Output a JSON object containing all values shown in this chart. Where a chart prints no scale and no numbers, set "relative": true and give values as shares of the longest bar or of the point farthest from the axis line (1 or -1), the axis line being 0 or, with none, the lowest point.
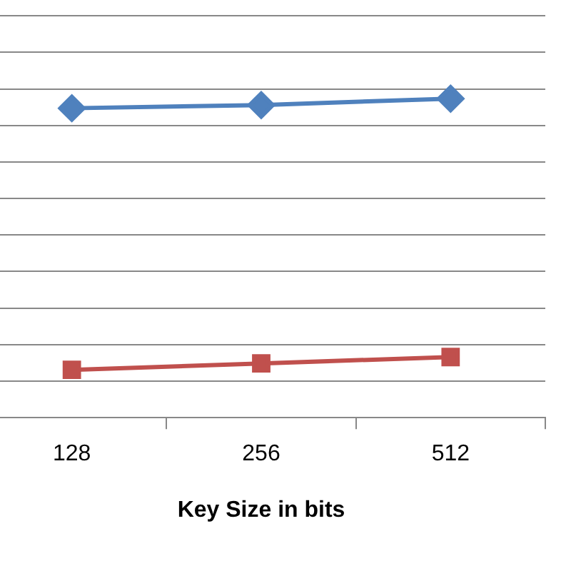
{
  "chart_data": {
    "type": "line",
    "xlabel": "Key Size in bits",
    "categories": [
      "128",
      "256",
      "512"
    ],
    "relative": true,
    "grid": "y",
    "legend": false,
    "tick_labels": "x",
    "line_style": "solid",
    "series": [
      {
        "color": "#4f81bd",
        "marker": "diamond",
        "values": [
          0.97,
          0.98,
          1
        ]
      },
      {
        "color": "#c0504d",
        "marker": "square",
        "values": [
          0.15,
          0.17,
          0.19
        ]
      }
    ]
  }
}
